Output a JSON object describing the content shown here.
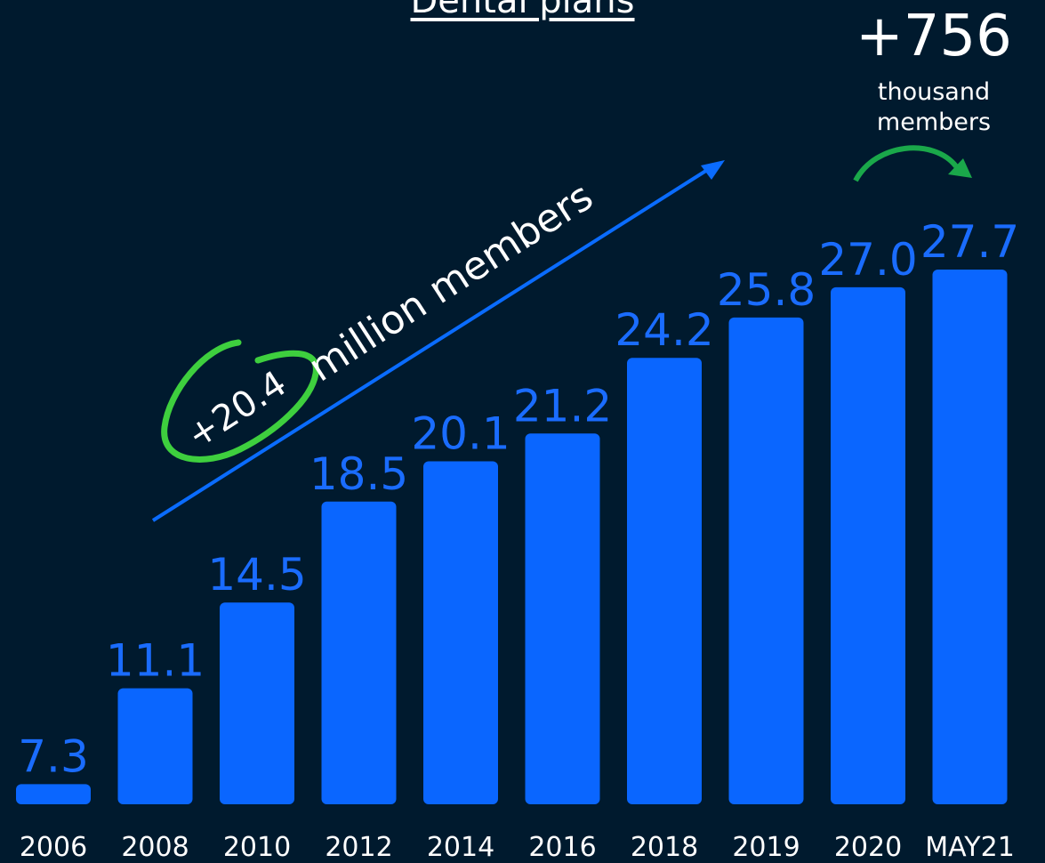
{
  "chart_data": {
    "type": "bar",
    "title": "Dental plans",
    "categories": [
      "2006",
      "2008",
      "2010",
      "2012",
      "2014",
      "2016",
      "2018",
      "2019",
      "2020",
      "MAY21"
    ],
    "values": [
      7.3,
      11.1,
      14.5,
      18.5,
      20.1,
      21.2,
      24.2,
      25.8,
      27.0,
      27.7
    ],
    "value_labels": [
      "7.3",
      "11.1",
      "14.5",
      "18.5",
      "20.1",
      "21.2",
      "24.2",
      "25.8",
      "27.0",
      "27.7"
    ],
    "xlabel": "",
    "ylabel": "",
    "ylim": [
      0,
      28
    ],
    "grid": false,
    "annotations": {
      "growth_value": "+20.4",
      "growth_text": "million members",
      "recent_value": "+756",
      "recent_unit_line1": "thousand",
      "recent_unit_line2": "members"
    }
  },
  "colors": {
    "background": "#001a2e",
    "bar": "#0a66ff",
    "value_label": "#1a6cff",
    "axis_label": "#ffffff",
    "arrow_blue": "#0a6cff",
    "highlight_green": "#3ecf3e",
    "curve_arrow": "#1aa84a"
  }
}
